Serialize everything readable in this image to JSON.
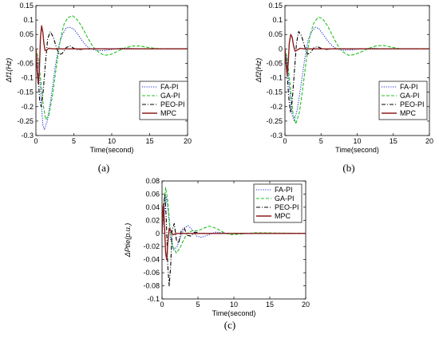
{
  "chart_data": [
    {
      "type": "line",
      "caption": "(a)",
      "ylabel": "Δf1(Hz)",
      "xlabel": "Time(second)",
      "xlim": [
        0,
        20
      ],
      "ylim": [
        -0.3,
        0.15
      ],
      "xticks": [
        "0",
        "5",
        "10",
        "15",
        "20"
      ],
      "yticks": [
        "0.15",
        "0.1",
        "0.05",
        "0",
        "-0.05",
        "-0.1",
        "-0.15",
        "-0.2",
        "-0.25",
        "-0.3"
      ],
      "legend": "right",
      "series": [
        {
          "name": "FA-PI",
          "color": "#1f2fd0",
          "dash": "dotted",
          "points": [
            [
              0,
              0
            ],
            [
              0.3,
              -0.04
            ],
            [
              0.6,
              -0.14
            ],
            [
              0.9,
              -0.26
            ],
            [
              1.1,
              -0.28
            ],
            [
              1.5,
              -0.25
            ],
            [
              2,
              -0.17
            ],
            [
              2.5,
              -0.07
            ],
            [
              3,
              0.01
            ],
            [
              3.5,
              0.05
            ],
            [
              4,
              0.073
            ],
            [
              4.5,
              0.075
            ],
            [
              5,
              0.068
            ],
            [
              5.5,
              0.052
            ],
            [
              6,
              0.032
            ],
            [
              6.5,
              0.015
            ],
            [
              7,
              0.003
            ],
            [
              8,
              -0.006
            ],
            [
              9,
              -0.006
            ],
            [
              10,
              -0.002
            ],
            [
              11,
              0.002
            ],
            [
              12,
              0.002
            ],
            [
              14,
              0
            ],
            [
              20,
              0
            ]
          ]
        },
        {
          "name": "GA-PI",
          "color": "#20c020",
          "dash": "dashed",
          "points": [
            [
              0,
              0
            ],
            [
              0.3,
              -0.03
            ],
            [
              0.6,
              -0.1
            ],
            [
              1,
              -0.2
            ],
            [
              1.3,
              -0.245
            ],
            [
              1.7,
              -0.23
            ],
            [
              2.2,
              -0.16
            ],
            [
              2.7,
              -0.06
            ],
            [
              3.2,
              0.03
            ],
            [
              3.7,
              0.085
            ],
            [
              4.2,
              0.108
            ],
            [
              4.8,
              0.115
            ],
            [
              5.3,
              0.106
            ],
            [
              6,
              0.08
            ],
            [
              6.8,
              0.04
            ],
            [
              7.5,
              0.008
            ],
            [
              8.3,
              -0.012
            ],
            [
              9,
              -0.022
            ],
            [
              9.8,
              -0.02
            ],
            [
              10.8,
              -0.008
            ],
            [
              11.8,
              0.004
            ],
            [
              12.8,
              0.01
            ],
            [
              13.8,
              0.01
            ],
            [
              15,
              0.004
            ],
            [
              16.5,
              0
            ],
            [
              20,
              0
            ]
          ]
        },
        {
          "name": "PEO-PI",
          "color": "#000000",
          "dash": "dashdot",
          "points": [
            [
              0,
              0
            ],
            [
              0.25,
              -0.08
            ],
            [
              0.5,
              -0.18
            ],
            [
              0.7,
              -0.2
            ],
            [
              0.95,
              -0.15
            ],
            [
              1.25,
              -0.05
            ],
            [
              1.55,
              0.035
            ],
            [
              1.9,
              0.06
            ],
            [
              2.3,
              0.04
            ],
            [
              2.7,
              0.005
            ],
            [
              3.1,
              -0.02
            ],
            [
              3.5,
              -0.015
            ],
            [
              4,
              0.005
            ],
            [
              4.5,
              0.01
            ],
            [
              5,
              0.002
            ],
            [
              5.5,
              -0.003
            ],
            [
              6.5,
              0
            ],
            [
              20,
              0
            ]
          ]
        },
        {
          "name": "MPC",
          "color": "#8b1c1c",
          "dash": "solid",
          "points": [
            [
              0,
              0
            ],
            [
              0.15,
              -0.07
            ],
            [
              0.3,
              -0.12
            ],
            [
              0.45,
              -0.08
            ],
            [
              0.6,
              0.04
            ],
            [
              0.75,
              0.08
            ],
            [
              0.9,
              0.06
            ],
            [
              1.05,
              0.02
            ],
            [
              1.2,
              -0.005
            ],
            [
              1.4,
              -0.004
            ],
            [
              1.7,
              0.002
            ],
            [
              2.2,
              0
            ],
            [
              20,
              0
            ]
          ]
        }
      ]
    },
    {
      "type": "line",
      "caption": "(b)",
      "ylabel": "Δf2(Hz)",
      "xlabel": "Time(second)",
      "xlim": [
        0,
        20
      ],
      "ylim": [
        -0.3,
        0.15
      ],
      "xticks": [
        "0",
        "5",
        "10",
        "15",
        "20"
      ],
      "yticks": [
        "0.15",
        "0.1",
        "0.05",
        "0",
        "-0.05",
        "-0.1",
        "-0.15",
        "-0.2",
        "-0.25",
        "-0.3"
      ],
      "legend": "right",
      "series": [
        {
          "name": "FA-PI",
          "color": "#1f2fd0",
          "dash": "dotted",
          "points": [
            [
              0,
              0
            ],
            [
              0.3,
              -0.04
            ],
            [
              0.6,
              -0.13
            ],
            [
              1,
              -0.23
            ],
            [
              1.3,
              -0.25
            ],
            [
              1.7,
              -0.21
            ],
            [
              2.2,
              -0.13
            ],
            [
              2.7,
              -0.04
            ],
            [
              3.2,
              0.03
            ],
            [
              3.7,
              0.06
            ],
            [
              4.2,
              0.075
            ],
            [
              4.7,
              0.07
            ],
            [
              5.3,
              0.05
            ],
            [
              6,
              0.025
            ],
            [
              6.8,
              0.005
            ],
            [
              7.8,
              -0.005
            ],
            [
              9,
              -0.004
            ],
            [
              10.5,
              0
            ],
            [
              12,
              0.002
            ],
            [
              14,
              0
            ],
            [
              20,
              0
            ]
          ]
        },
        {
          "name": "GA-PI",
          "color": "#20c020",
          "dash": "dashed",
          "points": [
            [
              0,
              0
            ],
            [
              0.3,
              -0.03
            ],
            [
              0.7,
              -0.12
            ],
            [
              1.1,
              -0.22
            ],
            [
              1.5,
              -0.26
            ],
            [
              2,
              -0.22
            ],
            [
              2.5,
              -0.13
            ],
            [
              3,
              -0.03
            ],
            [
              3.5,
              0.05
            ],
            [
              4,
              0.09
            ],
            [
              4.6,
              0.11
            ],
            [
              5.2,
              0.105
            ],
            [
              5.9,
              0.08
            ],
            [
              6.6,
              0.045
            ],
            [
              7.3,
              0.012
            ],
            [
              8,
              -0.01
            ],
            [
              8.8,
              -0.022
            ],
            [
              9.6,
              -0.02
            ],
            [
              10.6,
              -0.01
            ],
            [
              11.6,
              0.002
            ],
            [
              12.6,
              0.01
            ],
            [
              13.6,
              0.012
            ],
            [
              14.8,
              0.006
            ],
            [
              16,
              0
            ],
            [
              20,
              0
            ]
          ]
        },
        {
          "name": "PEO-PI",
          "color": "#000000",
          "dash": "dashdot",
          "points": [
            [
              0,
              0
            ],
            [
              0.25,
              -0.06
            ],
            [
              0.5,
              -0.16
            ],
            [
              0.75,
              -0.22
            ],
            [
              1,
              -0.18
            ],
            [
              1.3,
              -0.08
            ],
            [
              1.6,
              0.02
            ],
            [
              1.9,
              0.06
            ],
            [
              2.3,
              0.045
            ],
            [
              2.7,
              0.01
            ],
            [
              3.1,
              -0.018
            ],
            [
              3.5,
              -0.015
            ],
            [
              4,
              0.004
            ],
            [
              4.5,
              0.008
            ],
            [
              5,
              0.002
            ],
            [
              5.6,
              -0.002
            ],
            [
              6.5,
              0
            ],
            [
              20,
              0
            ]
          ]
        },
        {
          "name": "MPC",
          "color": "#8b1c1c",
          "dash": "solid",
          "points": [
            [
              0,
              0
            ],
            [
              0.15,
              -0.05
            ],
            [
              0.3,
              -0.09
            ],
            [
              0.45,
              -0.05
            ],
            [
              0.6,
              0.02
            ],
            [
              0.8,
              0.05
            ],
            [
              1,
              0.04
            ],
            [
              1.2,
              0.01
            ],
            [
              1.4,
              -0.008
            ],
            [
              1.7,
              -0.004
            ],
            [
              2.1,
              0.002
            ],
            [
              2.6,
              0
            ],
            [
              20,
              0
            ]
          ]
        }
      ]
    },
    {
      "type": "line",
      "caption": "(c)",
      "ylabel": "ΔPtie(p.u.)",
      "xlabel": "Time(second)",
      "xlim": [
        0,
        20
      ],
      "ylim": [
        -0.1,
        0.08
      ],
      "xticks": [
        "0",
        "5",
        "10",
        "15",
        "20"
      ],
      "yticks": [
        "0.08",
        "0.06",
        "0.04",
        "0.02",
        "0",
        "-0.02",
        "-0.04",
        "-0.06",
        "-0.08",
        "-0.1"
      ],
      "legend": "top-right",
      "series": [
        {
          "name": "FA-PI",
          "color": "#1f2fd0",
          "dash": "dotted",
          "points": [
            [
              0,
              0
            ],
            [
              0.3,
              0.03
            ],
            [
              0.6,
              0.055
            ],
            [
              0.9,
              0.03
            ],
            [
              1.2,
              -0.01
            ],
            [
              1.6,
              -0.025
            ],
            [
              2.1,
              -0.02
            ],
            [
              2.6,
              -0.005
            ],
            [
              3.1,
              0.008
            ],
            [
              3.6,
              0.012
            ],
            [
              4.2,
              0.006
            ],
            [
              4.8,
              -0.004
            ],
            [
              5.5,
              -0.006
            ],
            [
              6.5,
              -0.002
            ],
            [
              7.5,
              0.002
            ],
            [
              9,
              0
            ],
            [
              20,
              0
            ]
          ]
        },
        {
          "name": "GA-PI",
          "color": "#20c020",
          "dash": "dashed",
          "points": [
            [
              0,
              0
            ],
            [
              0.25,
              0.04
            ],
            [
              0.5,
              0.07
            ],
            [
              0.8,
              0.05
            ],
            [
              1.1,
              0.01
            ],
            [
              1.5,
              -0.02
            ],
            [
              2,
              -0.03
            ],
            [
              2.5,
              -0.022
            ],
            [
              3,
              -0.01
            ],
            [
              3.5,
              0
            ],
            [
              4.2,
              0.004
            ],
            [
              5,
              0.004
            ],
            [
              5.8,
              0.008
            ],
            [
              6.6,
              0.011
            ],
            [
              7.5,
              0.008
            ],
            [
              8.5,
              0.002
            ],
            [
              9.5,
              -0.002
            ],
            [
              11,
              -0.001
            ],
            [
              13,
              0.001
            ],
            [
              20,
              0
            ]
          ]
        },
        {
          "name": "PEO-PI",
          "color": "#000000",
          "dash": "dashdot",
          "points": [
            [
              0,
              0
            ],
            [
              0.2,
              0.04
            ],
            [
              0.4,
              0.06
            ],
            [
              0.6,
              0.02
            ],
            [
              0.8,
              -0.05
            ],
            [
              1,
              -0.08
            ],
            [
              1.2,
              -0.05
            ],
            [
              1.4,
              0.005
            ],
            [
              1.7,
              0.015
            ],
            [
              2,
              -0.01
            ],
            [
              2.3,
              -0.015
            ],
            [
              2.7,
              0.005
            ],
            [
              3.1,
              0.008
            ],
            [
              3.5,
              -0.003
            ],
            [
              4,
              -0.004
            ],
            [
              4.6,
              0.002
            ],
            [
              5.3,
              0
            ],
            [
              20,
              0
            ]
          ]
        },
        {
          "name": "MPC",
          "color": "#8b1c1c",
          "dash": "solid",
          "points": [
            [
              0,
              0
            ],
            [
              0.1,
              0.03
            ],
            [
              0.2,
              0.045
            ],
            [
              0.35,
              0.01
            ],
            [
              0.5,
              -0.03
            ],
            [
              0.65,
              -0.04
            ],
            [
              0.8,
              -0.015
            ],
            [
              1,
              0.008
            ],
            [
              1.2,
              0.004
            ],
            [
              1.5,
              -0.002
            ],
            [
              2,
              0
            ],
            [
              20,
              0
            ]
          ]
        }
      ]
    }
  ]
}
